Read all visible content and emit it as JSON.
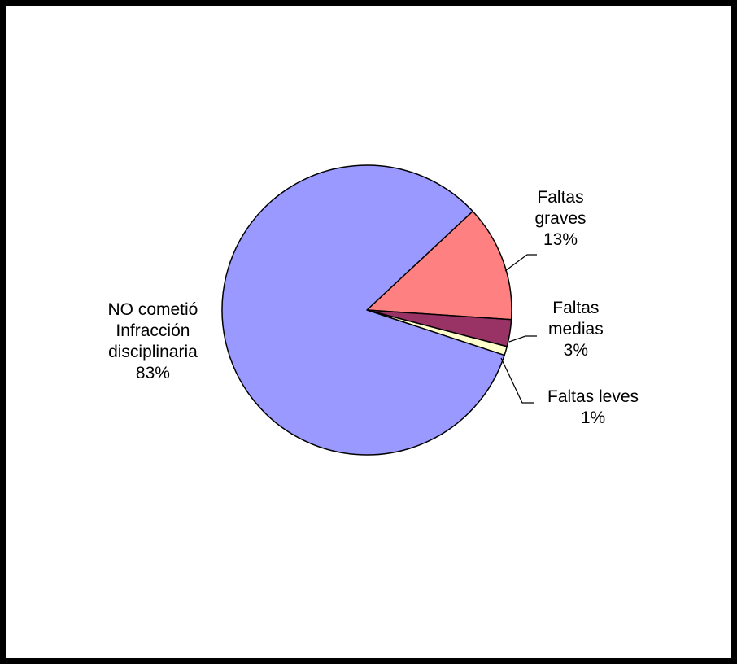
{
  "chart_data": {
    "type": "pie",
    "title": "",
    "slices": [
      {
        "lines": [
          "Faltas",
          "graves"
        ],
        "pct": "13%",
        "value": 13,
        "color": "#FF8080"
      },
      {
        "lines": [
          "Faltas",
          "medias"
        ],
        "pct": "3%",
        "value": 3,
        "color": "#993366"
      },
      {
        "lines": [
          "Faltas leves"
        ],
        "pct": "1%",
        "value": 1,
        "color": "#FFFFCC"
      },
      {
        "lines": [
          "NO cometió",
          "Infracción",
          "disciplinaria"
        ],
        "pct": "83%",
        "value": 83,
        "color": "#9999FF"
      }
    ],
    "legend": "none",
    "start_angle_deg": 43,
    "direction": "clockwise"
  }
}
